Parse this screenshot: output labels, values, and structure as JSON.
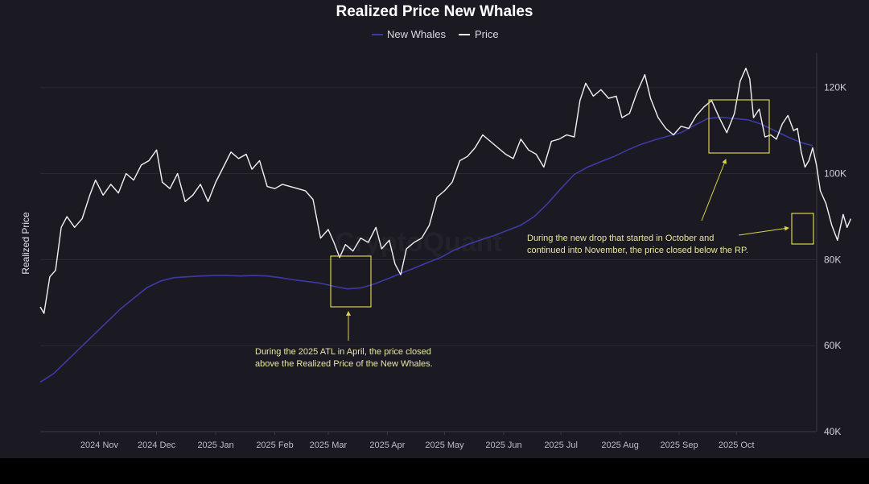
{
  "colors": {
    "background": "#1b1a22",
    "price": "#f2f2f2",
    "new_whales": "#3d3aa6",
    "annotation": "#d9d24a",
    "grid": "#2a2932"
  },
  "chart_data": {
    "type": "line",
    "title": "Realized Price New Whales",
    "ylabel": "Realized Price",
    "xlabel": "",
    "legend_position": "top-center",
    "grid": "horizontal",
    "x_range": [
      "2024-10-01",
      "2025-11-10"
    ],
    "ylim": [
      40000,
      128000
    ],
    "y_ticks": [
      {
        "value": 40000,
        "label": "40K"
      },
      {
        "value": 60000,
        "label": "60K"
      },
      {
        "value": 80000,
        "label": "80K"
      },
      {
        "value": 100000,
        "label": "100K"
      },
      {
        "value": 120000,
        "label": "120K"
      }
    ],
    "x_ticks": [
      {
        "date": "2024-11-01",
        "label": "2024 Nov"
      },
      {
        "date": "2024-12-01",
        "label": "2024 Dec"
      },
      {
        "date": "2025-01-01",
        "label": "2025 Jan"
      },
      {
        "date": "2025-02-01",
        "label": "2025 Feb"
      },
      {
        "date": "2025-03-01",
        "label": "2025 Mar"
      },
      {
        "date": "2025-04-01",
        "label": "2025 Apr"
      },
      {
        "date": "2025-05-01",
        "label": "2025 May"
      },
      {
        "date": "2025-06-01",
        "label": "2025 Jun"
      },
      {
        "date": "2025-07-01",
        "label": "2025 Jul"
      },
      {
        "date": "2025-08-01",
        "label": "2025 Aug"
      },
      {
        "date": "2025-09-01",
        "label": "2025 Sep"
      },
      {
        "date": "2025-10-01",
        "label": "2025 Oct"
      }
    ],
    "series": [
      {
        "name": "New Whales",
        "color": "#3d3aa6",
        "points": [
          [
            "2024-10-01",
            51500
          ],
          [
            "2024-10-08",
            53500
          ],
          [
            "2024-10-15",
            56500
          ],
          [
            "2024-10-22",
            59500
          ],
          [
            "2024-10-29",
            62500
          ],
          [
            "2024-11-05",
            65500
          ],
          [
            "2024-11-12",
            68500
          ],
          [
            "2024-11-19",
            71000
          ],
          [
            "2024-11-26",
            73500
          ],
          [
            "2024-12-03",
            75000
          ],
          [
            "2024-12-10",
            75800
          ],
          [
            "2024-12-17",
            76000
          ],
          [
            "2024-12-24",
            76200
          ],
          [
            "2024-12-31",
            76300
          ],
          [
            "2025-01-07",
            76300
          ],
          [
            "2025-01-14",
            76200
          ],
          [
            "2025-01-21",
            76300
          ],
          [
            "2025-01-28",
            76200
          ],
          [
            "2025-02-04",
            75800
          ],
          [
            "2025-02-11",
            75300
          ],
          [
            "2025-02-18",
            74900
          ],
          [
            "2025-02-25",
            74500
          ],
          [
            "2025-03-04",
            73800
          ],
          [
            "2025-03-11",
            73200
          ],
          [
            "2025-03-18",
            73400
          ],
          [
            "2025-03-25",
            74300
          ],
          [
            "2025-04-01",
            75500
          ],
          [
            "2025-04-08",
            76800
          ],
          [
            "2025-04-15",
            78000
          ],
          [
            "2025-04-22",
            79300
          ],
          [
            "2025-04-29",
            80500
          ],
          [
            "2025-05-06",
            82200
          ],
          [
            "2025-05-13",
            83500
          ],
          [
            "2025-05-20",
            84600
          ],
          [
            "2025-05-27",
            85600
          ],
          [
            "2025-06-03",
            86800
          ],
          [
            "2025-06-10",
            88000
          ],
          [
            "2025-06-17",
            90000
          ],
          [
            "2025-06-24",
            93000
          ],
          [
            "2025-07-01",
            96500
          ],
          [
            "2025-07-08",
            99800
          ],
          [
            "2025-07-15",
            101500
          ],
          [
            "2025-07-22",
            102800
          ],
          [
            "2025-07-29",
            104000
          ],
          [
            "2025-08-05",
            105500
          ],
          [
            "2025-08-12",
            106800
          ],
          [
            "2025-08-19",
            107800
          ],
          [
            "2025-08-26",
            108700
          ],
          [
            "2025-09-02",
            109500
          ],
          [
            "2025-09-09",
            111200
          ],
          [
            "2025-09-16",
            112800
          ],
          [
            "2025-09-23",
            113100
          ],
          [
            "2025-09-30",
            112800
          ],
          [
            "2025-10-07",
            112500
          ],
          [
            "2025-10-14",
            111500
          ],
          [
            "2025-10-21",
            110000
          ],
          [
            "2025-10-28",
            108500
          ],
          [
            "2025-11-04",
            107200
          ],
          [
            "2025-11-10",
            106500
          ]
        ]
      },
      {
        "name": "Price",
        "color": "#f2f2f2",
        "points": [
          [
            "2024-10-01",
            69000
          ],
          [
            "2024-10-03",
            67500
          ],
          [
            "2024-10-06",
            76000
          ],
          [
            "2024-10-09",
            77500
          ],
          [
            "2024-10-12",
            87500
          ],
          [
            "2024-10-15",
            90000
          ],
          [
            "2024-10-19",
            87500
          ],
          [
            "2024-10-23",
            89500
          ],
          [
            "2024-10-27",
            95000
          ],
          [
            "2024-10-30",
            98500
          ],
          [
            "2024-11-03",
            95000
          ],
          [
            "2024-11-07",
            97500
          ],
          [
            "2024-11-11",
            95500
          ],
          [
            "2024-11-15",
            100000
          ],
          [
            "2024-11-19",
            98500
          ],
          [
            "2024-11-23",
            102000
          ],
          [
            "2024-11-27",
            103000
          ],
          [
            "2024-12-01",
            105500
          ],
          [
            "2024-12-04",
            98000
          ],
          [
            "2024-12-08",
            96500
          ],
          [
            "2024-12-12",
            100000
          ],
          [
            "2024-12-16",
            93500
          ],
          [
            "2024-12-20",
            95000
          ],
          [
            "2024-12-24",
            97500
          ],
          [
            "2024-12-28",
            93500
          ],
          [
            "2025-01-01",
            98000
          ],
          [
            "2025-01-05",
            101500
          ],
          [
            "2025-01-09",
            105000
          ],
          [
            "2025-01-13",
            103500
          ],
          [
            "2025-01-17",
            104500
          ],
          [
            "2025-01-20",
            101000
          ],
          [
            "2025-01-24",
            103000
          ],
          [
            "2025-01-28",
            97000
          ],
          [
            "2025-02-01",
            96500
          ],
          [
            "2025-02-05",
            97500
          ],
          [
            "2025-02-09",
            97000
          ],
          [
            "2025-02-13",
            96500
          ],
          [
            "2025-02-17",
            96000
          ],
          [
            "2025-02-21",
            94000
          ],
          [
            "2025-02-25",
            85000
          ],
          [
            "2025-03-01",
            87000
          ],
          [
            "2025-03-04",
            84000
          ],
          [
            "2025-03-07",
            80500
          ],
          [
            "2025-03-10",
            83500
          ],
          [
            "2025-03-14",
            82000
          ],
          [
            "2025-03-18",
            85000
          ],
          [
            "2025-03-22",
            84000
          ],
          [
            "2025-03-26",
            87500
          ],
          [
            "2025-03-29",
            82500
          ],
          [
            "2025-04-02",
            84500
          ],
          [
            "2025-04-05",
            79000
          ],
          [
            "2025-04-08",
            76500
          ],
          [
            "2025-04-11",
            82500
          ],
          [
            "2025-04-15",
            84000
          ],
          [
            "2025-04-19",
            85000
          ],
          [
            "2025-04-23",
            88000
          ],
          [
            "2025-04-27",
            94500
          ],
          [
            "2025-05-01",
            96000
          ],
          [
            "2025-05-05",
            98000
          ],
          [
            "2025-05-09",
            103000
          ],
          [
            "2025-05-13",
            104000
          ],
          [
            "2025-05-17",
            106000
          ],
          [
            "2025-05-21",
            109000
          ],
          [
            "2025-05-25",
            107500
          ],
          [
            "2025-05-29",
            106000
          ],
          [
            "2025-06-02",
            104500
          ],
          [
            "2025-06-06",
            103500
          ],
          [
            "2025-06-10",
            108000
          ],
          [
            "2025-06-14",
            105500
          ],
          [
            "2025-06-18",
            104500
          ],
          [
            "2025-06-22",
            101500
          ],
          [
            "2025-06-26",
            107500
          ],
          [
            "2025-06-30",
            108000
          ],
          [
            "2025-07-04",
            109000
          ],
          [
            "2025-07-08",
            108500
          ],
          [
            "2025-07-11",
            117000
          ],
          [
            "2025-07-14",
            121000
          ],
          [
            "2025-07-18",
            118000
          ],
          [
            "2025-07-22",
            119500
          ],
          [
            "2025-07-26",
            117500
          ],
          [
            "2025-07-30",
            118000
          ],
          [
            "2025-08-02",
            113000
          ],
          [
            "2025-08-06",
            114000
          ],
          [
            "2025-08-10",
            119000
          ],
          [
            "2025-08-14",
            123000
          ],
          [
            "2025-08-17",
            117500
          ],
          [
            "2025-08-21",
            113000
          ],
          [
            "2025-08-25",
            110500
          ],
          [
            "2025-08-29",
            109000
          ],
          [
            "2025-09-02",
            111000
          ],
          [
            "2025-09-06",
            110500
          ],
          [
            "2025-09-10",
            113500
          ],
          [
            "2025-09-14",
            115500
          ],
          [
            "2025-09-18",
            117000
          ],
          [
            "2025-09-22",
            113000
          ],
          [
            "2025-09-26",
            109500
          ],
          [
            "2025-09-30",
            114000
          ],
          [
            "2025-10-03",
            121500
          ],
          [
            "2025-10-06",
            124500
          ],
          [
            "2025-10-08",
            122000
          ],
          [
            "2025-10-10",
            113000
          ],
          [
            "2025-10-13",
            115000
          ],
          [
            "2025-10-16",
            108500
          ],
          [
            "2025-10-19",
            109000
          ],
          [
            "2025-10-22",
            108000
          ],
          [
            "2025-10-25",
            111500
          ],
          [
            "2025-10-28",
            113500
          ],
          [
            "2025-10-31",
            110000
          ],
          [
            "2025-11-02",
            110500
          ],
          [
            "2025-11-04",
            105000
          ],
          [
            "2025-11-06",
            101500
          ],
          [
            "2025-11-08",
            103000
          ],
          [
            "2025-11-10",
            106000
          ],
          [
            "2025-11-12",
            102000
          ],
          [
            "2025-11-14",
            96000
          ],
          [
            "2025-11-17",
            93000
          ],
          [
            "2025-11-20",
            88000
          ],
          [
            "2025-11-23",
            84500
          ],
          [
            "2025-11-26",
            90500
          ],
          [
            "2025-11-28",
            87500
          ],
          [
            "2025-11-30",
            89500
          ]
        ]
      }
    ],
    "annotations": [
      {
        "lines": [
          "During the 2025 ATL in April, the price closed",
          "above the Realized Price of the New Whales."
        ]
      },
      {
        "lines": [
          "During the new drop that started in October and",
          "continued into November, the price closed below the RP."
        ]
      }
    ]
  }
}
